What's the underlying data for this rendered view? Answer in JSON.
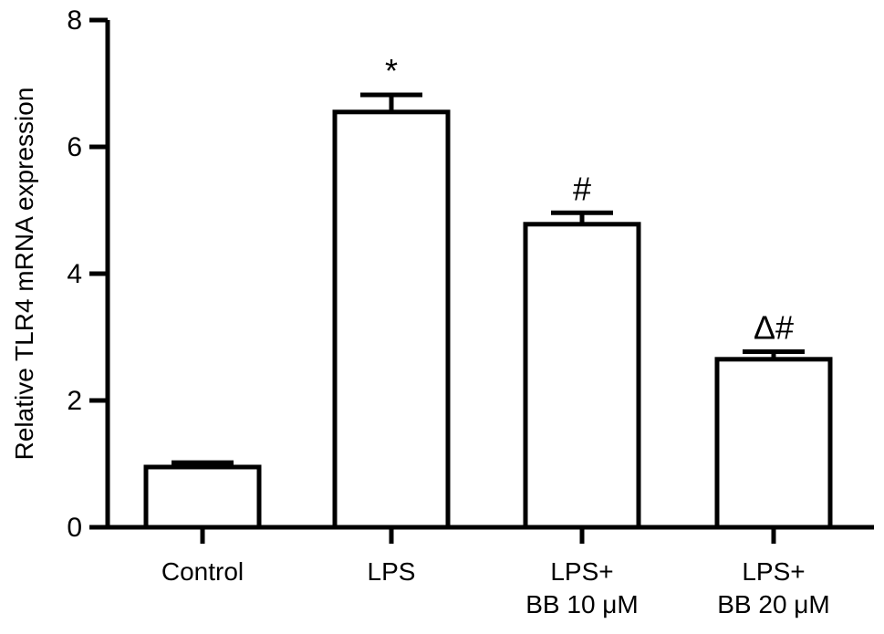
{
  "chart_data": {
    "type": "bar",
    "title": "",
    "xlabel": "",
    "ylabel": "Relative TLR4 mRNA expression",
    "ylim": [
      0,
      8
    ],
    "yticks": [
      "0",
      "2",
      "4",
      "6",
      "8"
    ],
    "categories": [
      [
        "Control"
      ],
      [
        "LPS"
      ],
      [
        "LPS+",
        "BB 10 μM"
      ],
      [
        "LPS+",
        "BB 20 μM"
      ]
    ],
    "values": [
      0.95,
      6.55,
      4.78,
      2.65
    ],
    "errors": [
      0.07,
      0.27,
      0.18,
      0.12
    ],
    "annotations": [
      "",
      "*",
      "#",
      "Δ#"
    ],
    "grid": false,
    "legend": "none",
    "bar_fill": "#ffffff",
    "bar_stroke": "#000000"
  }
}
